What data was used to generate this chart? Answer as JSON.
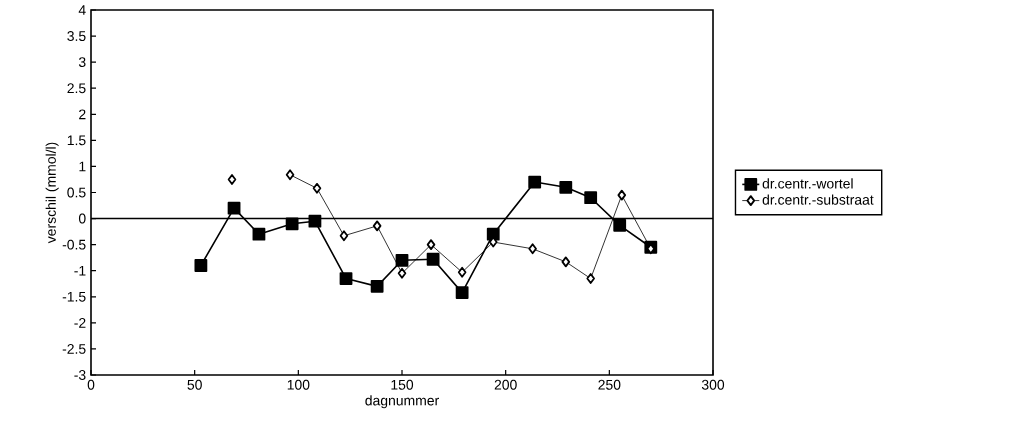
{
  "chart_data": {
    "type": "line",
    "xlabel": "dagnummer",
    "ylabel": "verschil (mmol/l)",
    "xlim": [
      0,
      300
    ],
    "xticks": [
      0,
      50,
      100,
      150,
      200,
      250,
      300
    ],
    "ylim": [
      -3,
      4
    ],
    "yticks": [
      -3,
      -2.5,
      -2,
      -1.5,
      -1,
      -0.5,
      0,
      0.5,
      1,
      1.5,
      2,
      2.5,
      3,
      3.5,
      4
    ],
    "grid": false,
    "legend": "right",
    "ref_lines": [
      {
        "axis": "y",
        "value": 0,
        "color": "#000000"
      }
    ],
    "series": [
      {
        "name": "dr.centr.-wortel",
        "color": "#000000",
        "marker": "square",
        "line_style": "solid",
        "x": [
          53,
          69,
          81,
          97,
          108,
          123,
          138,
          150,
          165,
          179,
          194,
          214,
          229,
          241,
          255,
          270
        ],
        "values": [
          -0.9,
          0.2,
          -0.3,
          -0.1,
          -0.05,
          -1.15,
          -1.3,
          -0.8,
          -0.78,
          -1.42,
          -0.3,
          0.7,
          0.6,
          0.4,
          -0.13,
          -0.55
        ]
      },
      {
        "name": "dr.centr.-substraat",
        "color": "#000000",
        "marker": "diamond",
        "line_style": "solid",
        "x": [
          68,
          82,
          96,
          109,
          122,
          138,
          150,
          164,
          179,
          194,
          213,
          229,
          241,
          256,
          270
        ],
        "values": [
          0.75,
          null,
          0.84,
          0.58,
          -0.33,
          -0.14,
          -1.05,
          -0.5,
          -1.03,
          -0.45,
          -0.58,
          -0.83,
          -1.15,
          0.45,
          -0.58
        ]
      }
    ]
  }
}
